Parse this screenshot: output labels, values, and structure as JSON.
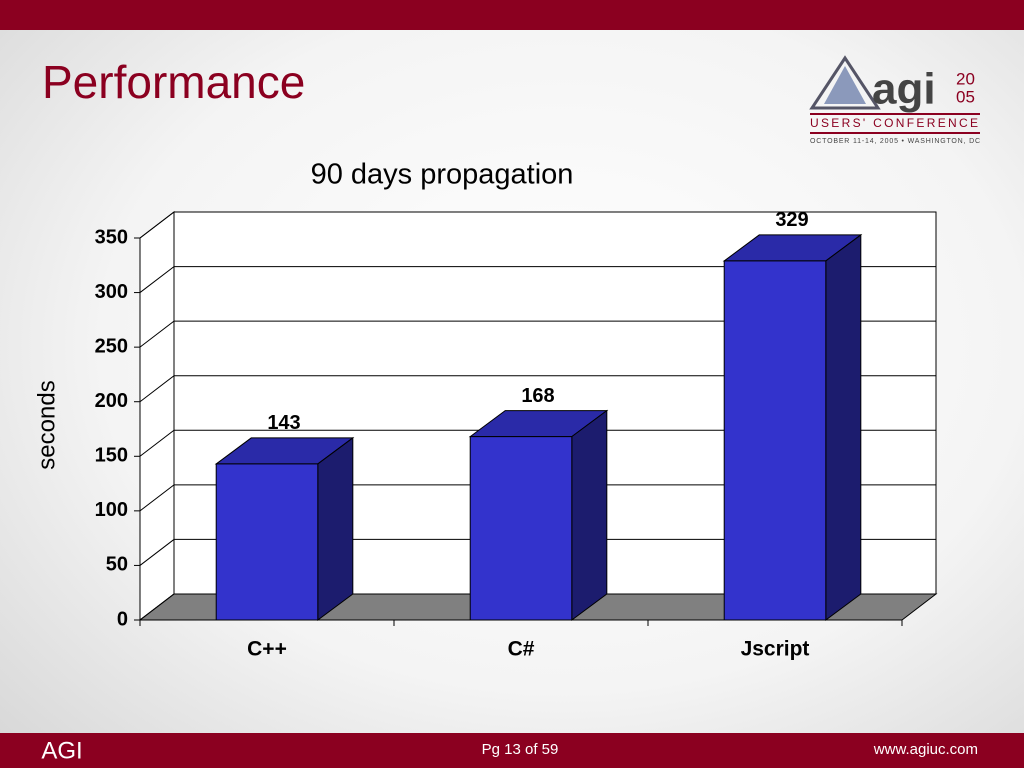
{
  "slide_title": "Performance",
  "logo": {
    "word": "agi",
    "year_top": "20",
    "year_bottom": "05",
    "line1": "USERS' CONFERENCE",
    "line2": "OCTOBER 11-14, 2005 • WASHINGTON, DC"
  },
  "footer": {
    "left": "AGI",
    "center": "Pg 13 of 59",
    "right": "www.agiuc.com"
  },
  "chart_data": {
    "type": "bar3d",
    "title": "90 days propagation",
    "y_label": "seconds",
    "categories": [
      "C++",
      "C#",
      "Jscript"
    ],
    "values": [
      143,
      168,
      329
    ],
    "color": "#3333cc",
    "ylim": [
      0,
      350
    ],
    "yticks": [
      0,
      50,
      100,
      150,
      200,
      250,
      300,
      350
    ],
    "grid": true
  }
}
